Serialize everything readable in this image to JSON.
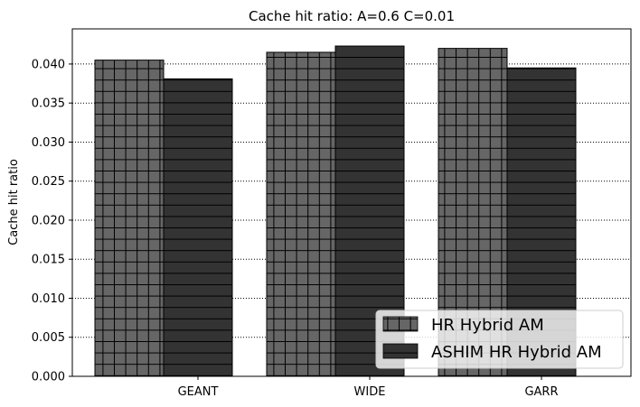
{
  "chart_data": {
    "type": "bar",
    "title": "Cache hit ratio: A=0.6 C=0.01",
    "xlabel": "",
    "ylabel": "Cache hit ratio",
    "categories": [
      "GEANT",
      "WIDE",
      "GARR"
    ],
    "series": [
      {
        "name": "HR Hybrid AM",
        "values": [
          0.0405,
          0.0415,
          0.042
        ],
        "color": "#666666",
        "hatch": "grid"
      },
      {
        "name": "ASHIM HR Hybrid AM",
        "values": [
          0.0381,
          0.0423,
          0.0395
        ],
        "color": "#333333",
        "hatch": "horizontal"
      }
    ],
    "ylim": [
      0,
      0.0445
    ],
    "yticks": [
      "0.000",
      "0.005",
      "0.010",
      "0.015",
      "0.020",
      "0.025",
      "0.030",
      "0.035",
      "0.040"
    ],
    "grid": "horizontal dotted",
    "legend_position": "lower-right"
  }
}
